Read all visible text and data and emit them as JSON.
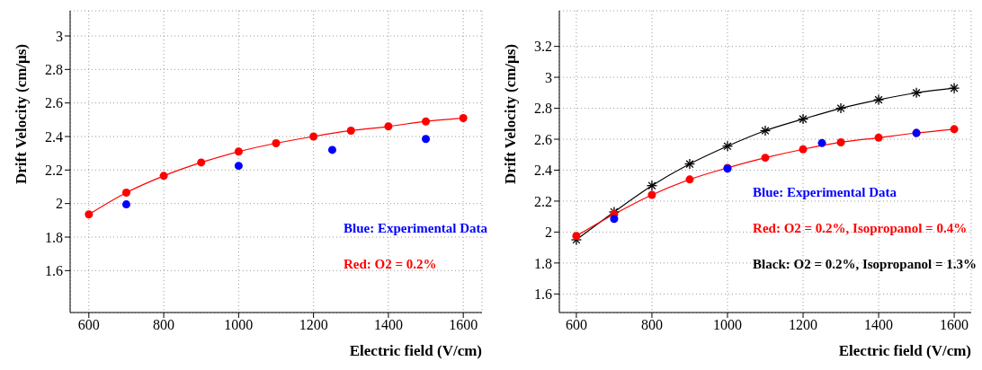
{
  "chart_data": [
    {
      "type": "line",
      "xlabel": "Electric field (V/cm)",
      "ylabel": "Drift Velocity (cm/μs)",
      "xlim": [
        550,
        1650
      ],
      "xticks": [
        600,
        800,
        1000,
        1200,
        1400,
        1600
      ],
      "ylim": [
        1.35,
        3.15
      ],
      "yticks": [
        1.6,
        1.8,
        2,
        2.2,
        2.4,
        2.6,
        2.8,
        3
      ],
      "grid": true,
      "legend": "bottom right",
      "series": [
        {
          "name": "Red: O2 = 0.2%",
          "color": "#ff0000",
          "marker": "circle",
          "x": [
            600,
            700,
            800,
            900,
            1000,
            1100,
            1200,
            1300,
            1400,
            1500,
            1600
          ],
          "values": [
            1.935,
            2.065,
            2.165,
            2.245,
            2.31,
            2.36,
            2.4,
            2.435,
            2.46,
            2.49,
            2.51
          ]
        },
        {
          "name": "Blue: Experimental Data",
          "type": "scatter",
          "color": "#0000ff",
          "marker": "circle",
          "x": [
            700,
            1000,
            1250,
            1500
          ],
          "values": [
            1.995,
            2.225,
            2.32,
            2.385
          ]
        }
      ]
    },
    {
      "type": "line",
      "xlabel": "Electric field (V/cm)",
      "ylabel": "Drift Velocity (cm/μs)",
      "xlim": [
        555,
        1645
      ],
      "xticks": [
        600,
        800,
        1000,
        1200,
        1400,
        1600
      ],
      "ylim": [
        1.48,
        3.43
      ],
      "yticks": [
        1.6,
        1.8,
        2,
        2.2,
        2.4,
        2.6,
        2.8,
        3,
        3.2
      ],
      "grid": true,
      "legend": "bottom right",
      "series": [
        {
          "name": "Black: O2 = 0.2%, Isopropanol = 1.3%",
          "color": "#000000",
          "marker": "cross",
          "x": [
            600,
            700,
            800,
            900,
            1000,
            1100,
            1200,
            1300,
            1400,
            1500,
            1600
          ],
          "values": [
            1.95,
            2.13,
            2.3,
            2.44,
            2.555,
            2.655,
            2.73,
            2.8,
            2.855,
            2.9,
            2.93
          ]
        },
        {
          "name": "Red: O2 = 0.2%, Isopropanol = 0.4%",
          "color": "#ff0000",
          "marker": "circle",
          "x": [
            600,
            700,
            800,
            900,
            1000,
            1100,
            1200,
            1300,
            1400,
            1500,
            1600
          ],
          "values": [
            1.975,
            2.115,
            2.24,
            2.34,
            2.415,
            2.48,
            2.535,
            2.58,
            2.61,
            2.64,
            2.665
          ]
        },
        {
          "name": "Blue: Experimental Data",
          "type": "scatter",
          "color": "#0000ff",
          "marker": "circle",
          "x": [
            700,
            1000,
            1250,
            1500
          ],
          "values": [
            2.085,
            2.41,
            2.575,
            2.64
          ]
        }
      ]
    }
  ]
}
